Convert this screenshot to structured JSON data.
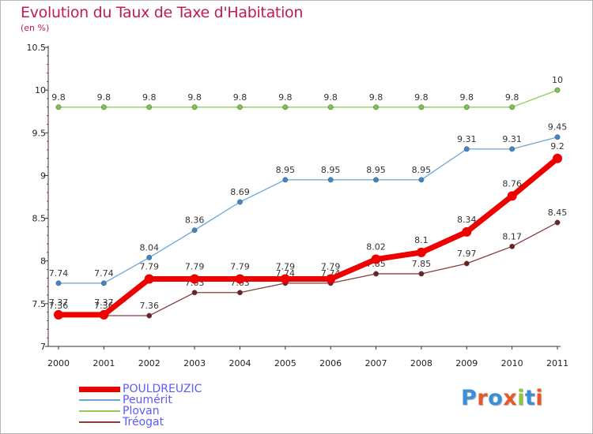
{
  "title": "Evolution du Taux de Taxe d'Habitation",
  "subtitle": "(en %)",
  "logo": {
    "text": "Proxiti",
    "colors": [
      "#3a8fd8",
      "#e8562a",
      "#3a8fd8",
      "#e8562a",
      "#8dc63f",
      "#3a8fd8",
      "#e8562a"
    ]
  },
  "chart_data": {
    "type": "line",
    "title": "Evolution du Taux de Taxe d'Habitation",
    "ylabel": "(en %)",
    "xlabel": "",
    "ylim": [
      7,
      10.5
    ],
    "yticks": [
      "7",
      "7.5",
      "8",
      "8.5",
      "9",
      "9.5",
      "10",
      "10.5"
    ],
    "categories": [
      "2000",
      "2001",
      "2002",
      "2003",
      "2004",
      "2005",
      "2006",
      "2007",
      "2008",
      "2009",
      "2010",
      "2011"
    ],
    "series": [
      {
        "name": "Plovan",
        "color": "#8dcf5a",
        "marker": "#7dc24a",
        "values": [
          9.8,
          9.8,
          9.8,
          9.8,
          9.8,
          9.8,
          9.8,
          9.8,
          9.8,
          9.8,
          9.8,
          10
        ],
        "labels": [
          "9.8",
          "9.8",
          "9.8",
          "9.8",
          "9.8",
          "9.8",
          "9.8",
          "9.8",
          "9.8",
          "9.8",
          "9.8",
          "10"
        ]
      },
      {
        "name": "Peumérit",
        "color": "#6aa6d8",
        "marker": "#3d86c8",
        "values": [
          7.74,
          7.74,
          8.04,
          8.36,
          8.69,
          8.95,
          8.95,
          8.95,
          8.95,
          9.31,
          9.31,
          9.45
        ],
        "labels": [
          "7.74",
          "7.74",
          "8.04",
          "8.36",
          "8.69",
          "8.95",
          "8.95",
          "8.95",
          "8.95",
          "9.31",
          "9.31",
          "9.45"
        ]
      },
      {
        "name": "Tréogat",
        "color": "#8a3a3a",
        "marker": "#6b2424",
        "values": [
          7.36,
          7.36,
          7.36,
          7.63,
          7.63,
          7.74,
          7.74,
          7.85,
          7.85,
          7.97,
          8.17,
          8.45
        ],
        "labels": [
          "7.36",
          "7.36",
          "7.36",
          "7.63",
          "7.63",
          "7.74",
          "7.74",
          "7.85",
          "7.85",
          "7.97",
          "8.17",
          "8.45"
        ]
      },
      {
        "name": "POULDREUZIC",
        "color": "#ee0000",
        "marker": "#ee0000",
        "values": [
          7.37,
          7.37,
          7.79,
          7.79,
          7.79,
          7.79,
          7.79,
          8.02,
          8.1,
          8.34,
          8.76,
          9.2
        ],
        "labels": [
          "7.37",
          "7.37",
          "7.79",
          "7.79",
          "7.79",
          "7.79",
          "7.79",
          "8.02",
          "8.1",
          "8.34",
          "8.76",
          "9.2"
        ]
      }
    ],
    "legend": [
      {
        "name": "POULDREUZIC",
        "color": "#ee0000",
        "text_color": "#5a5aff"
      },
      {
        "name": "Peumérit",
        "color": "#6aa6d8",
        "text_color": "#5a5aff"
      },
      {
        "name": "Plovan",
        "color": "#8dcf5a",
        "text_color": "#5a5aff"
      },
      {
        "name": "Tréogat",
        "color": "#8a3a3a",
        "text_color": "#5a5aff"
      }
    ]
  }
}
